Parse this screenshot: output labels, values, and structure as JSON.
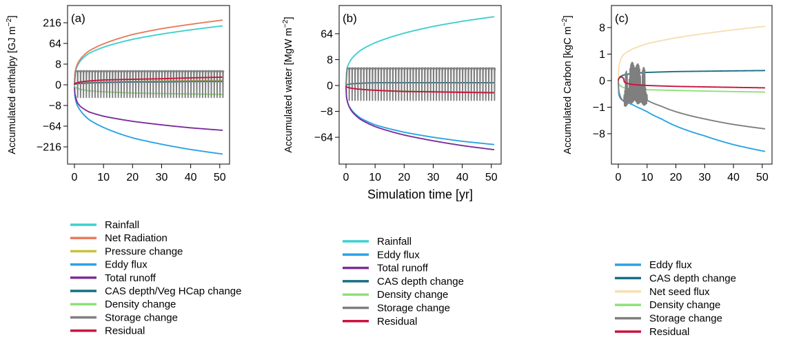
{
  "chart_data": [
    {
      "type": "line",
      "panel": "(a)",
      "ylabel": "Accumulated enthalpy [GJ m",
      "ylabel_sup": "−2",
      "ylabel_end": "]",
      "x_ticks": [
        "0",
        "10",
        "20",
        "30",
        "40",
        "50"
      ],
      "y_ticks": [
        "216",
        "64",
        "8",
        "0",
        "−8",
        "−64",
        "−216"
      ],
      "y_tick_values": [
        216,
        64,
        8,
        0,
        -8,
        -64,
        -216
      ],
      "xlim": [
        0,
        51
      ],
      "y_scale": "cube-root",
      "ylim": [
        -343,
        343
      ],
      "series": [
        {
          "name": "Rainfall",
          "color": "#3ecfcf",
          "x": [
            0,
            0.5,
            1,
            2,
            5,
            10,
            20,
            30,
            40,
            51
          ],
          "values": [
            0,
            3,
            6,
            12,
            28,
            48,
            85,
            118,
            150,
            185
          ]
        },
        {
          "name": "Net Radiation",
          "color": "#e87b5f",
          "x": [
            0,
            0.5,
            1,
            2,
            5,
            10,
            20,
            30,
            40,
            51
          ],
          "values": [
            0,
            4,
            8,
            15,
            35,
            62,
            115,
            160,
            200,
            245
          ]
        },
        {
          "name": "Pressure change",
          "color": "#c9c236",
          "x": [
            0,
            10,
            20,
            30,
            40,
            51
          ],
          "values": [
            0,
            0.02,
            0.03,
            0.05,
            0.06,
            0.08
          ]
        },
        {
          "name": "Eddy flux",
          "color": "#2aa3e6",
          "x": [
            0,
            0.5,
            1,
            2,
            5,
            10,
            20,
            30,
            40,
            51
          ],
          "values": [
            0,
            -4,
            -8,
            -15,
            -38,
            -70,
            -135,
            -190,
            -245,
            -300
          ]
        },
        {
          "name": "Total runoff",
          "color": "#7b2e9b",
          "x": [
            0,
            0.5,
            1,
            2,
            5,
            10,
            20,
            30,
            40,
            51
          ],
          "values": [
            0,
            -2,
            -5,
            -9,
            -18,
            -28,
            -44,
            -58,
            -72,
            -85
          ]
        },
        {
          "name": "CAS depth/Veg HCap change",
          "color": "#176e82",
          "x": [
            0,
            10,
            20,
            30,
            40,
            51
          ],
          "values": [
            0,
            0.01,
            0.02,
            0.02,
            0.03,
            0.03
          ]
        },
        {
          "name": "Density change",
          "color": "#8fe07a",
          "x": [
            0,
            5,
            10,
            20,
            30,
            40,
            51
          ],
          "values": [
            0,
            -0.2,
            -0.3,
            -0.5,
            -0.6,
            -0.7,
            -0.8
          ]
        },
        {
          "name": "Storage change",
          "color": "#7f7f7f",
          "x": [
            0,
            51
          ],
          "values": [
            0,
            0
          ],
          "pattern": "sawtooth",
          "pattern_high": 2.5,
          "pattern_low": -1.8,
          "pattern_period": 1
        },
        {
          "name": "Residual",
          "color": "#c8143f",
          "x": [
            0,
            10,
            20,
            30,
            40,
            51
          ],
          "values": [
            0,
            0.1,
            0.15,
            0.2,
            0.3,
            0.4
          ]
        }
      ]
    },
    {
      "type": "line",
      "panel": "(b)",
      "ylabel": "Accumulated water [MgW m",
      "ylabel_sup": "−2",
      "ylabel_end": "]",
      "xlabel": "Simulation time [yr]",
      "x_ticks": [
        "0",
        "10",
        "20",
        "30",
        "40",
        "50"
      ],
      "y_ticks": [
        "64",
        "8",
        "0",
        "−8",
        "−64"
      ],
      "y_tick_values": [
        64,
        8,
        0,
        -8,
        -64
      ],
      "xlim": [
        0,
        51
      ],
      "y_scale": "cube-root",
      "ylim": [
        -170,
        180
      ],
      "series": [
        {
          "name": "Rainfall",
          "color": "#3ecfcf",
          "x": [
            0,
            0.5,
            1,
            2,
            5,
            10,
            20,
            30,
            40,
            51
          ],
          "values": [
            0,
            3,
            5,
            9,
            20,
            36,
            66,
            95,
            122,
            150
          ]
        },
        {
          "name": "Eddy flux",
          "color": "#2aa3e6",
          "x": [
            0,
            0.5,
            1,
            2,
            5,
            10,
            20,
            30,
            40,
            51
          ],
          "values": [
            0,
            -2,
            -4,
            -7,
            -16,
            -28,
            -47,
            -64,
            -80,
            -95
          ]
        },
        {
          "name": "Total runoff",
          "color": "#7b2e9b",
          "x": [
            0,
            0.5,
            1,
            2,
            5,
            10,
            20,
            30,
            40,
            51
          ],
          "values": [
            0,
            -2,
            -4,
            -8,
            -18,
            -32,
            -56,
            -78,
            -100,
            -122
          ]
        },
        {
          "name": "CAS depth change",
          "color": "#176e82",
          "x": [
            0,
            10,
            20,
            30,
            40,
            51
          ],
          "values": [
            0,
            0.01,
            0.01,
            0.01,
            0.01,
            0.01
          ]
        },
        {
          "name": "Density change",
          "color": "#8fe07a",
          "x": [
            0,
            10,
            20,
            30,
            40,
            51
          ],
          "values": [
            0,
            -0.05,
            -0.08,
            -0.1,
            -0.12,
            -0.14
          ]
        },
        {
          "name": "Storage change",
          "color": "#7f7f7f",
          "x": [
            0,
            51
          ],
          "values": [
            0,
            0
          ],
          "pattern": "sawtooth",
          "pattern_high": 2.5,
          "pattern_low": -1.5,
          "pattern_period": 1
        },
        {
          "name": "Residual",
          "color": "#c8143f",
          "x": [
            0,
            10,
            20,
            30,
            40,
            51
          ],
          "values": [
            0,
            -0.05,
            -0.1,
            -0.12,
            -0.15,
            -0.18
          ]
        }
      ]
    },
    {
      "type": "line",
      "panel": "(c)",
      "ylabel": "Accumulated Carbon [kgC m",
      "ylabel_sup": "−2",
      "ylabel_end": "]",
      "x_ticks": [
        "0",
        "10",
        "20",
        "30",
        "40",
        "50"
      ],
      "y_ticks": [
        "8",
        "1",
        "0",
        "−1",
        "−8"
      ],
      "y_tick_values": [
        8,
        1,
        0,
        -1,
        -8
      ],
      "xlim": [
        0,
        51
      ],
      "y_scale": "cube-root",
      "ylim": [
        -24,
        17
      ],
      "series": [
        {
          "name": "Eddy flux",
          "color": "#2aa3e6",
          "x": [
            0,
            0.3,
            1,
            2,
            3,
            5,
            8,
            10,
            15,
            20,
            30,
            40,
            51
          ],
          "values": [
            0,
            -0.2,
            -0.35,
            -0.45,
            -0.55,
            -0.75,
            -1.2,
            -1.6,
            -3,
            -5,
            -9,
            -14,
            -19
          ]
        },
        {
          "name": "CAS depth change",
          "color": "#176e82",
          "x": [
            0,
            2,
            5,
            10,
            20,
            30,
            40,
            51
          ],
          "values": [
            0,
            0.01,
            0.02,
            0.03,
            0.04,
            0.045,
            0.05,
            0.055
          ]
        },
        {
          "name": "Net seed flux",
          "color": "#f6dfb2",
          "x": [
            0,
            0.5,
            1,
            2,
            5,
            10,
            20,
            30,
            40,
            51
          ],
          "values": [
            0,
            0.3,
            0.6,
            1,
            1.7,
            2.7,
            4.2,
            5.6,
            7,
            8.6
          ]
        },
        {
          "name": "Density change",
          "color": "#8fe07a",
          "x": [
            0,
            2,
            5,
            10,
            20,
            30,
            40,
            51
          ],
          "values": [
            0,
            -0.02,
            -0.03,
            -0.04,
            -0.05,
            -0.06,
            -0.07,
            -0.08
          ]
        },
        {
          "name": "Storage change",
          "color": "#7f7f7f",
          "x": [
            0,
            1,
            2,
            5,
            10,
            15,
            20,
            25,
            30,
            40,
            51
          ],
          "values": [
            0,
            -0.3,
            -0.5,
            -0.1,
            -0.4,
            -0.9,
            -1.6,
            -2.3,
            -3,
            -4.5,
            -6
          ],
          "pattern": "oscillation",
          "pattern_range": [
            2,
            10
          ],
          "pattern_amp": 0.35
        },
        {
          "name": "Residual",
          "color": "#c8143f",
          "x": [
            0,
            1,
            2,
            5,
            10,
            20,
            30,
            40,
            51
          ],
          "values": [
            0,
            0.003,
            0,
            -0.003,
            -0.006,
            -0.01,
            -0.013,
            -0.016,
            -0.02
          ]
        }
      ]
    }
  ]
}
